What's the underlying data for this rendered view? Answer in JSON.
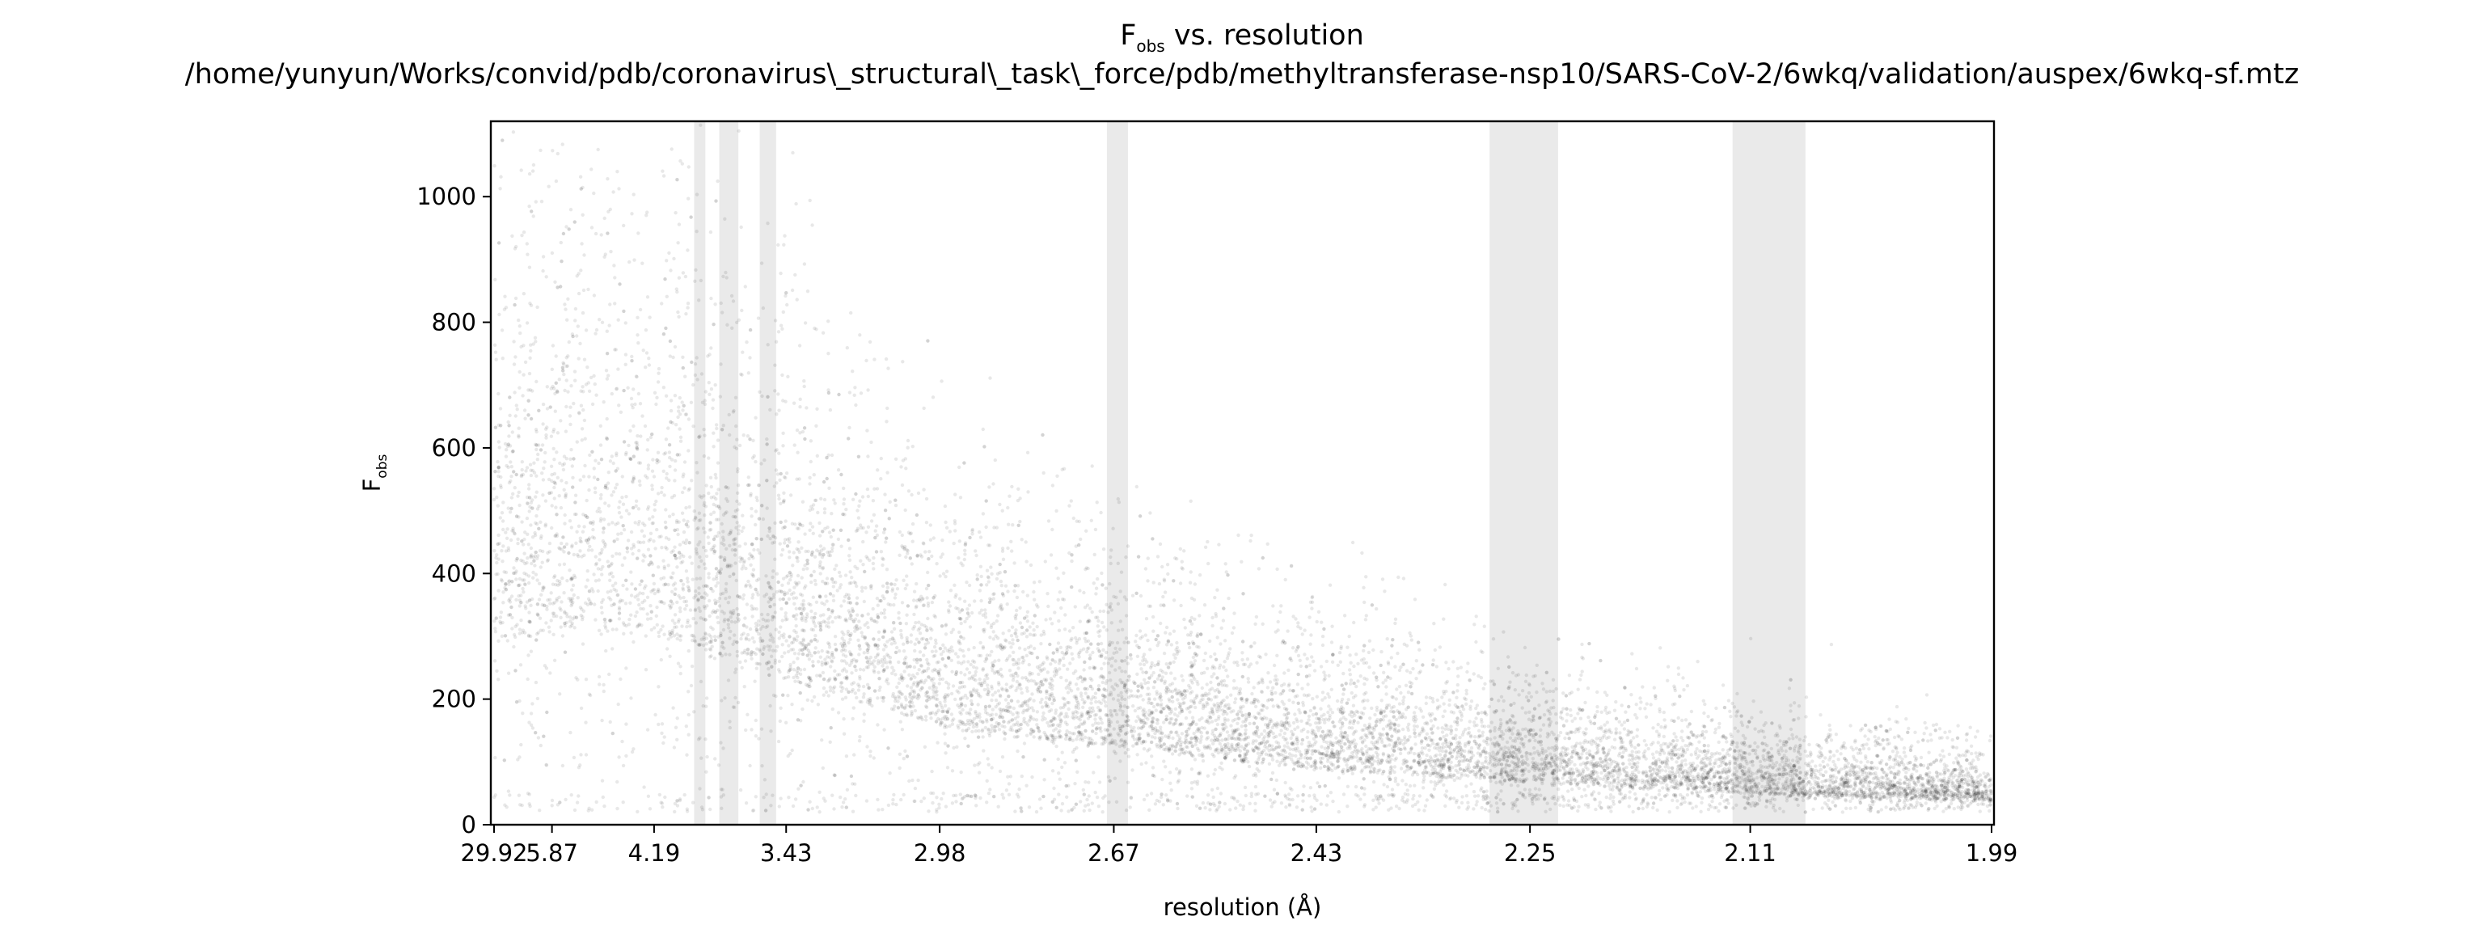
{
  "chart_data": {
    "type": "scatter",
    "title_main": "F",
    "title_main_sub": "obs",
    "title_main_rest": " vs. resolution",
    "title_path": "/home/yunyun/Works/convid/pdb/coronavirus\\_structural\\_task\\_force/pdb/methyltransferase-nsp10/SARS-CoV-2/6wkq/validation/auspex/6wkq-sf.mtz",
    "xlabel": "resolution (Å)",
    "ylabel": "F",
    "ylabel_sub": "obs",
    "x_scale": "reciprocal-cubed (1/d³)",
    "xlim": [
      29.92,
      1.99
    ],
    "ylim": [
      0,
      1120
    ],
    "x_ticks": [
      "29.92",
      "5.87",
      "4.19",
      "3.43",
      "2.98",
      "2.67",
      "2.43",
      "2.25",
      "2.11",
      "1.99"
    ],
    "y_ticks": [
      0,
      200,
      400,
      600,
      800,
      1000
    ],
    "grid": false,
    "marker_color": "#000000",
    "highlight_color": "#d9d9d9",
    "highlighted_resolution_bands": [
      {
        "from": 3.89,
        "to": 3.82
      },
      {
        "from": 3.74,
        "to": 3.64
      },
      {
        "from": 3.54,
        "to": 3.47
      },
      {
        "from": 2.68,
        "to": 2.65
      },
      {
        "from": 2.28,
        "to": 2.23
      },
      {
        "from": 2.12,
        "to": 2.08
      }
    ],
    "distribution_trend": [
      {
        "resolution": 29.92,
        "f_median": 520,
        "f_spread": 380
      },
      {
        "resolution": 5.87,
        "f_median": 560,
        "f_spread": 380
      },
      {
        "resolution": 4.19,
        "f_median": 560,
        "f_spread": 370
      },
      {
        "resolution": 3.43,
        "f_median": 420,
        "f_spread": 270
      },
      {
        "resolution": 2.98,
        "f_median": 280,
        "f_spread": 190
      },
      {
        "resolution": 2.67,
        "f_median": 220,
        "f_spread": 150
      },
      {
        "resolution": 2.43,
        "f_median": 160,
        "f_spread": 110
      },
      {
        "resolution": 2.25,
        "f_median": 120,
        "f_spread": 80
      },
      {
        "resolution": 2.11,
        "f_median": 90,
        "f_spread": 60
      },
      {
        "resolution": 1.99,
        "f_median": 65,
        "f_spread": 40
      }
    ]
  }
}
